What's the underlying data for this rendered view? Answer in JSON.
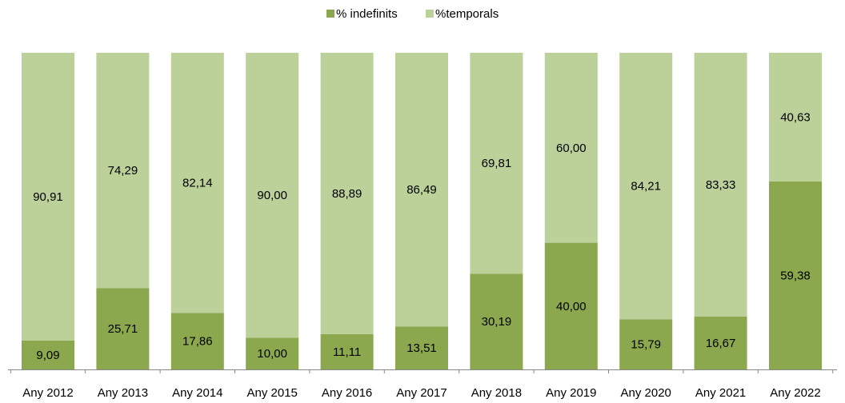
{
  "chart_data": {
    "type": "stacked_bar_100",
    "categories": [
      "Any 2012",
      "Any 2013",
      "Any 2014",
      "Any 2015",
      "Any 2016",
      "Any 2017",
      "Any 2018",
      "Any 2019",
      "Any 2020",
      "Any 2021",
      "Any 2022"
    ],
    "series": [
      {
        "name": "% indefinits",
        "color": "#8ba84e",
        "values": [
          9.09,
          25.71,
          17.86,
          10.0,
          11.11,
          13.51,
          30.19,
          40.0,
          15.79,
          16.67,
          59.38
        ],
        "value_labels": [
          "9,09",
          "25,71",
          "17,86",
          "10,00",
          "11,11",
          "13,51",
          "30,19",
          "40,00",
          "15,79",
          "16,67",
          "59,38"
        ]
      },
      {
        "name": "%temporals",
        "color": "#bcd09a",
        "values": [
          90.91,
          74.29,
          82.14,
          90.0,
          88.89,
          86.49,
          69.81,
          60.0,
          84.21,
          83.33,
          40.63
        ],
        "value_labels": [
          "90,91",
          "74,29",
          "82,14",
          "90,00",
          "88,89",
          "86,49",
          "69,81",
          "60,00",
          "84,21",
          "83,33",
          "40,63"
        ]
      }
    ],
    "ylim": [
      0,
      100
    ],
    "legend": "top"
  }
}
